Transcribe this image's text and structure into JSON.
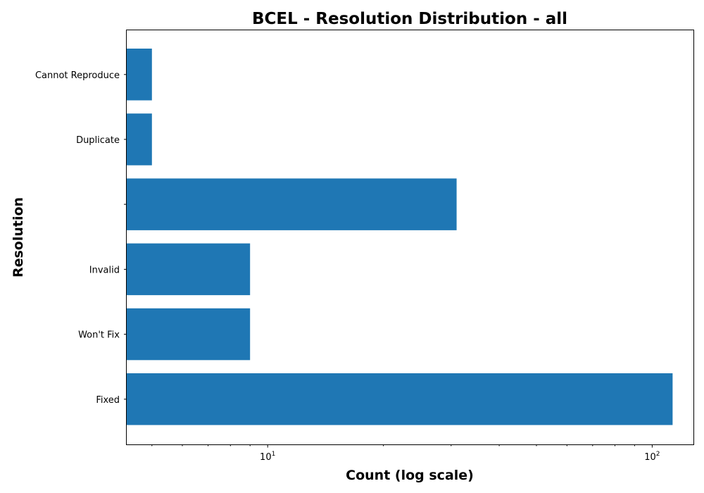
{
  "chart_data": {
    "type": "bar",
    "orientation": "horizontal",
    "title": "BCEL - Resolution Distribution - all",
    "xlabel": "Count (log scale)",
    "ylabel": "Resolution",
    "x_scale": "log",
    "xlim": [
      4.3,
      128
    ],
    "x_ticks": [
      {
        "value": 10,
        "base": "10",
        "exp": "1"
      },
      {
        "value": 100,
        "base": "10",
        "exp": "2"
      }
    ],
    "categories": [
      "Cannot Reproduce",
      "Duplicate",
      "",
      "Invalid",
      "Won't Fix",
      "Fixed"
    ],
    "values": [
      5,
      5,
      31,
      9,
      9,
      113
    ],
    "bar_color": "#1f77b4",
    "grid": false,
    "legend": "none"
  }
}
